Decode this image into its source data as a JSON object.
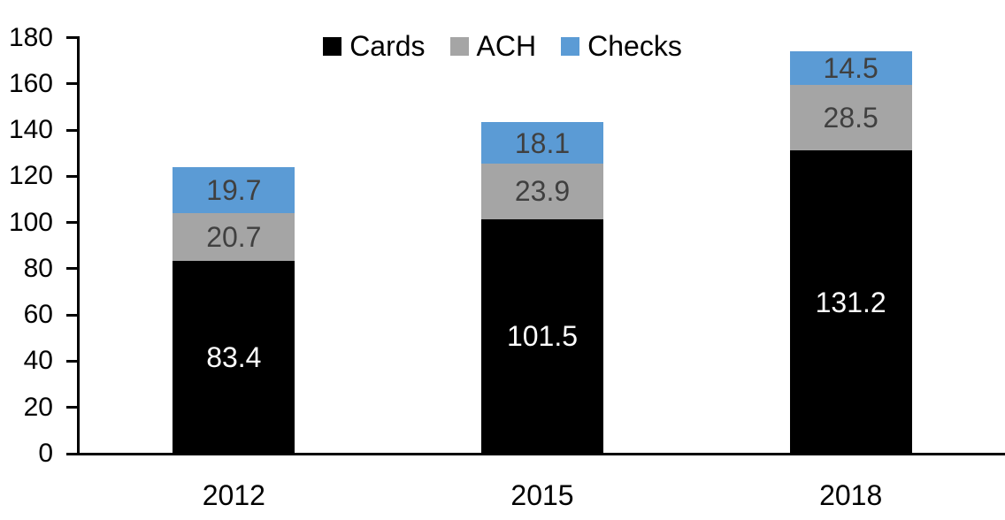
{
  "chart_data": {
    "type": "bar",
    "stacked": true,
    "title": "",
    "xlabel": "",
    "ylabel": "",
    "categories": [
      "2012",
      "2015",
      "2018"
    ],
    "series": [
      {
        "name": "Cards",
        "color": "#000000",
        "label_color": "#FFFFFF",
        "values": [
          83.4,
          101.5,
          131.2
        ]
      },
      {
        "name": "ACH",
        "color": "#A5A5A5",
        "label_color": "#404040",
        "values": [
          20.7,
          23.9,
          28.5
        ]
      },
      {
        "name": "Checks",
        "color": "#5B9BD5",
        "label_color": "#404040",
        "values": [
          19.7,
          18.1,
          14.5
        ]
      }
    ],
    "totals": [
      123.8,
      143.5,
      174.2
    ],
    "ylim": [
      0,
      180
    ],
    "yticks": [
      0,
      20,
      40,
      60,
      80,
      100,
      120,
      140,
      160,
      180
    ],
    "legend_position": "top-center",
    "grid": false,
    "axis_color": "#000000"
  }
}
